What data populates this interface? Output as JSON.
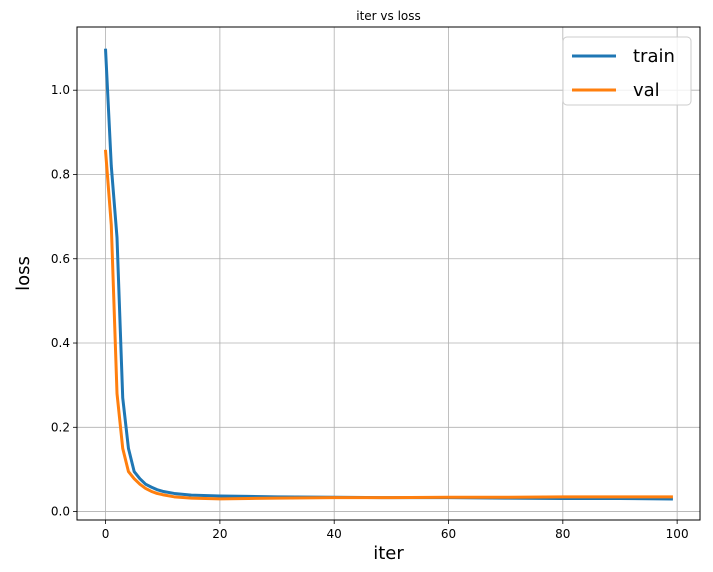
{
  "chart_data": {
    "type": "line",
    "title": "iter vs loss",
    "xlabel": "iter",
    "ylabel": "loss",
    "xlim": [
      -5,
      104
    ],
    "ylim": [
      -0.02,
      1.15
    ],
    "xticks": [
      0,
      20,
      40,
      60,
      80,
      100
    ],
    "yticks": [
      0.0,
      0.2,
      0.4,
      0.6,
      0.8,
      1.0
    ],
    "xtick_labels": [
      "0",
      "20",
      "40",
      "60",
      "80",
      "100"
    ],
    "ytick_labels": [
      "0.0",
      "0.2",
      "0.4",
      "0.6",
      "0.8",
      "1.0"
    ],
    "grid": true,
    "legend": "top-right",
    "series": [
      {
        "name": "train",
        "color": "#1f77b4",
        "x": [
          0,
          1,
          2,
          3,
          4,
          5,
          6,
          7,
          8,
          9,
          10,
          12,
          15,
          20,
          25,
          30,
          40,
          50,
          60,
          70,
          80,
          90,
          99
        ],
        "y": [
          1.095,
          0.82,
          0.65,
          0.27,
          0.15,
          0.095,
          0.078,
          0.065,
          0.058,
          0.052,
          0.048,
          0.043,
          0.039,
          0.037,
          0.036,
          0.035,
          0.034,
          0.033,
          0.033,
          0.032,
          0.031,
          0.031,
          0.03
        ]
      },
      {
        "name": "val",
        "color": "#ff7f0e",
        "x": [
          0,
          1,
          2,
          3,
          4,
          5,
          6,
          7,
          8,
          9,
          10,
          12,
          15,
          20,
          25,
          30,
          40,
          50,
          60,
          70,
          80,
          90,
          99
        ],
        "y": [
          0.855,
          0.68,
          0.28,
          0.15,
          0.095,
          0.078,
          0.065,
          0.055,
          0.048,
          0.043,
          0.04,
          0.035,
          0.032,
          0.03,
          0.031,
          0.032,
          0.033,
          0.033,
          0.034,
          0.034,
          0.035,
          0.035,
          0.035
        ]
      }
    ]
  }
}
